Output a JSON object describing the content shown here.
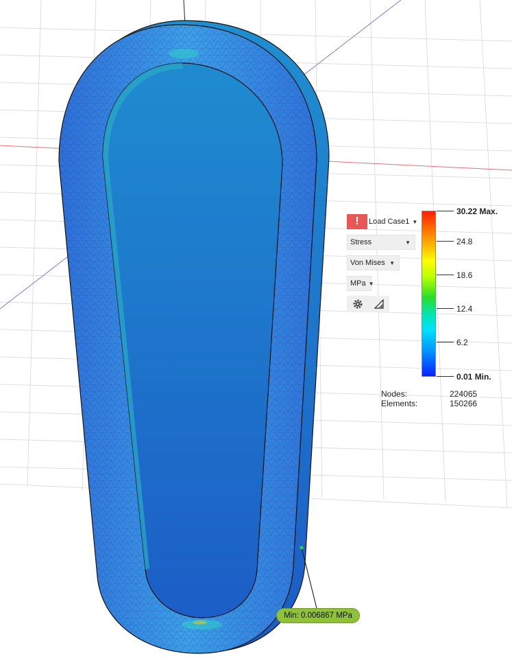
{
  "results_panel": {
    "warning_icon": "exclamation-icon",
    "load_case_label": "Load Case1",
    "result_type": "Stress",
    "component": "Von Mises",
    "units": "MPa",
    "settings_icon": "gear-icon",
    "display_icon": "triangle-icon"
  },
  "legend": {
    "max_label": "30.22 Max.",
    "ticks": [
      "24.8",
      "18.6",
      "12.4",
      "6.2"
    ],
    "min_label": "0.01 Min.",
    "max_color": "#ff1f00",
    "min_color": "#0a1fff"
  },
  "mesh_stats": {
    "nodes_label": "Nodes:",
    "nodes_value": "224065",
    "elements_label": "Elements:",
    "elements_value": "150266"
  },
  "min_probe": {
    "label": "Min: 0.006867 MPa"
  }
}
